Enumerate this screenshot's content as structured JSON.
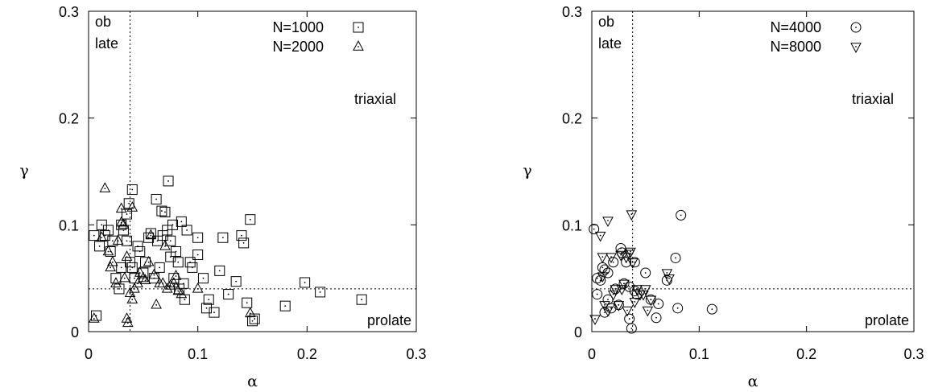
{
  "chart_data": [
    {
      "type": "scatter",
      "xlabel": "α",
      "ylabel": "γ",
      "xlim": [
        0,
        0.3
      ],
      "ylim": [
        0,
        0.3
      ],
      "xticks": [
        "0",
        "0.1",
        "0.2",
        "0.3"
      ],
      "yticks": [
        "0",
        "0.1",
        "0.2",
        "0.3"
      ],
      "grid": false,
      "legend_position": "top-right",
      "reference_lines": [
        {
          "axis": "x",
          "value": 0.038,
          "style": "dotted"
        },
        {
          "axis": "y",
          "value": 0.04,
          "style": "dotted"
        }
      ],
      "region_labels": [
        {
          "text": "ob",
          "area": "top-left"
        },
        {
          "text": "late",
          "area": "top-left"
        },
        {
          "text": "triaxial",
          "area": "upper-right"
        },
        {
          "text": "prolate",
          "area": "bottom-right"
        }
      ],
      "series": [
        {
          "name": "N=1000",
          "marker": "square",
          "points": [
            [
              0.005,
              0.09
            ],
            [
              0.007,
              0.015
            ],
            [
              0.01,
              0.08
            ],
            [
              0.012,
              0.1
            ],
            [
              0.015,
              0.09
            ],
            [
              0.018,
              0.095
            ],
            [
              0.02,
              0.075
            ],
            [
              0.022,
              0.085
            ],
            [
              0.025,
              0.05
            ],
            [
              0.028,
              0.04
            ],
            [
              0.03,
              0.06
            ],
            [
              0.03,
              0.1
            ],
            [
              0.032,
              0.095
            ],
            [
              0.035,
              0.11
            ],
            [
              0.035,
              0.085
            ],
            [
              0.037,
              0.12
            ],
            [
              0.038,
              0.065
            ],
            [
              0.04,
              0.133
            ],
            [
              0.04,
              0.06
            ],
            [
              0.042,
              0.05
            ],
            [
              0.045,
              0.08
            ],
            [
              0.047,
              0.075
            ],
            [
              0.05,
              0.055
            ],
            [
              0.052,
              0.065
            ],
            [
              0.055,
              0.088
            ],
            [
              0.057,
              0.092
            ],
            [
              0.06,
              0.05
            ],
            [
              0.062,
              0.124
            ],
            [
              0.063,
              0.085
            ],
            [
              0.065,
              0.06
            ],
            [
              0.067,
              0.113
            ],
            [
              0.068,
              0.09
            ],
            [
              0.07,
              0.112
            ],
            [
              0.072,
              0.095
            ],
            [
              0.073,
              0.141
            ],
            [
              0.075,
              0.085
            ],
            [
              0.075,
              0.07
            ],
            [
              0.077,
              0.1
            ],
            [
              0.078,
              0.05
            ],
            [
              0.08,
              0.075
            ],
            [
              0.082,
              0.065
            ],
            [
              0.083,
              0.04
            ],
            [
              0.085,
              0.103
            ],
            [
              0.087,
              0.045
            ],
            [
              0.088,
              0.03
            ],
            [
              0.09,
              0.095
            ],
            [
              0.093,
              0.065
            ],
            [
              0.095,
              0.06
            ],
            [
              0.1,
              0.088
            ],
            [
              0.1,
              0.072
            ],
            [
              0.105,
              0.05
            ],
            [
              0.108,
              0.022
            ],
            [
              0.11,
              0.03
            ],
            [
              0.115,
              0.018
            ],
            [
              0.12,
              0.057
            ],
            [
              0.123,
              0.088
            ],
            [
              0.128,
              0.035
            ],
            [
              0.135,
              0.047
            ],
            [
              0.14,
              0.09
            ],
            [
              0.142,
              0.083
            ],
            [
              0.145,
              0.027
            ],
            [
              0.148,
              0.105
            ],
            [
              0.15,
              0.01
            ],
            [
              0.152,
              0.012
            ],
            [
              0.18,
              0.024
            ],
            [
              0.198,
              0.046
            ],
            [
              0.212,
              0.037
            ],
            [
              0.25,
              0.03
            ]
          ]
        },
        {
          "name": "N=2000",
          "marker": "triangle-up",
          "points": [
            [
              0.005,
              0.012
            ],
            [
              0.012,
              0.088
            ],
            [
              0.015,
              0.134
            ],
            [
              0.018,
              0.075
            ],
            [
              0.02,
              0.06
            ],
            [
              0.022,
              0.065
            ],
            [
              0.025,
              0.045
            ],
            [
              0.027,
              0.085
            ],
            [
              0.03,
              0.102
            ],
            [
              0.03,
              0.115
            ],
            [
              0.032,
              0.1
            ],
            [
              0.033,
              0.05
            ],
            [
              0.035,
              0.07
            ],
            [
              0.035,
              0.012
            ],
            [
              0.036,
              0.008
            ],
            [
              0.038,
              0.036
            ],
            [
              0.04,
              0.03
            ],
            [
              0.04,
              0.116
            ],
            [
              0.042,
              0.04
            ],
            [
              0.045,
              0.045
            ],
            [
              0.047,
              0.055
            ],
            [
              0.05,
              0.05
            ],
            [
              0.052,
              0.048
            ],
            [
              0.055,
              0.065
            ],
            [
              0.057,
              0.09
            ],
            [
              0.06,
              0.053
            ],
            [
              0.062,
              0.025
            ],
            [
              0.065,
              0.045
            ],
            [
              0.068,
              0.045
            ],
            [
              0.07,
              0.08
            ],
            [
              0.072,
              0.04
            ],
            [
              0.075,
              0.043
            ],
            [
              0.078,
              0.045
            ],
            [
              0.08,
              0.052
            ],
            [
              0.082,
              0.038
            ],
            [
              0.085,
              0.035
            ],
            [
              0.1,
              0.04
            ],
            [
              0.148,
              0.017
            ]
          ]
        }
      ]
    },
    {
      "type": "scatter",
      "xlabel": "α",
      "ylabel": "γ",
      "xlim": [
        0,
        0.3
      ],
      "ylim": [
        0,
        0.3
      ],
      "xticks": [
        "0",
        "0.1",
        "0.2",
        "0.3"
      ],
      "yticks": [
        "0",
        "0.1",
        "0.2",
        "0.3"
      ],
      "grid": false,
      "legend_position": "top-right",
      "reference_lines": [
        {
          "axis": "x",
          "value": 0.038,
          "style": "dotted"
        },
        {
          "axis": "y",
          "value": 0.04,
          "style": "dotted"
        }
      ],
      "region_labels": [
        {
          "text": "ob",
          "area": "top-left"
        },
        {
          "text": "late",
          "area": "top-left"
        },
        {
          "text": "triaxial",
          "area": "upper-right"
        },
        {
          "text": "prolate",
          "area": "bottom-right"
        }
      ],
      "series": [
        {
          "name": "N=4000",
          "marker": "circle",
          "points": [
            [
              0.002,
              0.096
            ],
            [
              0.005,
              0.05
            ],
            [
              0.005,
              0.035
            ],
            [
              0.008,
              0.048
            ],
            [
              0.01,
              0.06
            ],
            [
              0.012,
              0.058
            ],
            [
              0.012,
              0.018
            ],
            [
              0.015,
              0.055
            ],
            [
              0.015,
              0.03
            ],
            [
              0.018,
              0.022
            ],
            [
              0.02,
              0.065
            ],
            [
              0.022,
              0.04
            ],
            [
              0.025,
              0.025
            ],
            [
              0.027,
              0.078
            ],
            [
              0.028,
              0.074
            ],
            [
              0.03,
              0.045
            ],
            [
              0.032,
              0.065
            ],
            [
              0.035,
              0.042
            ],
            [
              0.035,
              0.012
            ],
            [
              0.037,
              0.003
            ],
            [
              0.04,
              0.065
            ],
            [
              0.04,
              0.038
            ],
            [
              0.042,
              0.035
            ],
            [
              0.05,
              0.055
            ],
            [
              0.055,
              0.03
            ],
            [
              0.06,
              0.013
            ],
            [
              0.062,
              0.026
            ],
            [
              0.07,
              0.048
            ],
            [
              0.078,
              0.069
            ],
            [
              0.08,
              0.022
            ],
            [
              0.083,
              0.109
            ],
            [
              0.112,
              0.021
            ]
          ]
        },
        {
          "name": "N=8000",
          "marker": "triangle-down",
          "points": [
            [
              0.003,
              0.012
            ],
            [
              0.008,
              0.09
            ],
            [
              0.01,
              0.07
            ],
            [
              0.01,
              0.052
            ],
            [
              0.012,
              0.025
            ],
            [
              0.015,
              0.02
            ],
            [
              0.015,
              0.104
            ],
            [
              0.018,
              0.07
            ],
            [
              0.02,
              0.035
            ],
            [
              0.022,
              0.04
            ],
            [
              0.025,
              0.025
            ],
            [
              0.027,
              0.072
            ],
            [
              0.028,
              0.04
            ],
            [
              0.03,
              0.045
            ],
            [
              0.032,
              0.07
            ],
            [
              0.033,
              0.02
            ],
            [
              0.035,
              0.073
            ],
            [
              0.036,
              0.075
            ],
            [
              0.037,
              0.11
            ],
            [
              0.038,
              0.065
            ],
            [
              0.04,
              0.028
            ],
            [
              0.042,
              0.04
            ],
            [
              0.045,
              0.035
            ],
            [
              0.048,
              0.035
            ],
            [
              0.05,
              0.04
            ],
            [
              0.052,
              0.02
            ],
            [
              0.055,
              0.03
            ],
            [
              0.07,
              0.055
            ],
            [
              0.072,
              0.05
            ]
          ]
        }
      ]
    }
  ]
}
